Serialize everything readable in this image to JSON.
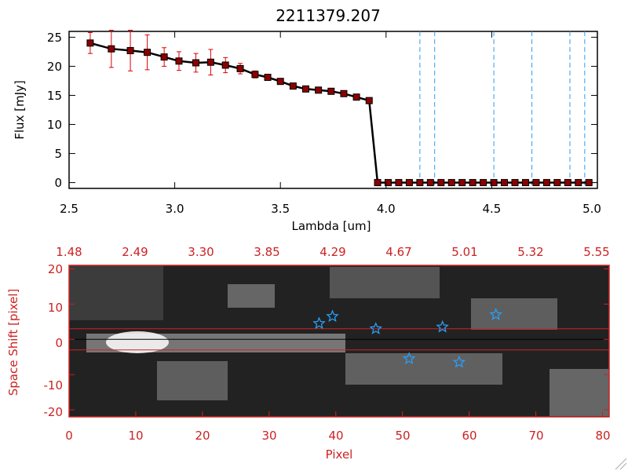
{
  "chart_data": [
    {
      "type": "line",
      "title": "2211379.207",
      "xlabel": "Lambda [um]",
      "ylabel": "Flux [mJy]",
      "xlim": [
        2.5,
        5.0
      ],
      "ylim": [
        -1,
        26
      ],
      "x_ticks": [
        "2.5",
        "3.0",
        "3.5",
        "4.0",
        "4.5",
        "5.0"
      ],
      "y_ticks": [
        "0",
        "5",
        "10",
        "15",
        "20",
        "25"
      ],
      "series": [
        {
          "x": [
            2.6,
            2.7,
            2.79,
            2.87,
            2.95,
            3.02,
            3.1,
            3.17,
            3.24,
            3.31,
            3.38,
            3.44,
            3.5,
            3.56,
            3.62,
            3.68,
            3.74,
            3.8,
            3.86,
            3.92,
            3.96,
            4.01,
            4.06,
            4.11,
            4.16,
            4.21,
            4.26,
            4.31,
            4.36,
            4.41,
            4.46,
            4.51,
            4.56,
            4.61,
            4.66,
            4.71,
            4.76,
            4.81,
            4.86,
            4.91,
            4.96
          ],
          "y": [
            24.0,
            23.0,
            22.7,
            22.4,
            21.6,
            20.9,
            20.6,
            20.7,
            20.2,
            19.6,
            18.6,
            18.1,
            17.4,
            16.6,
            16.1,
            15.9,
            15.7,
            15.3,
            14.7,
            14.1,
            0,
            0,
            0,
            0,
            0,
            0,
            0,
            0,
            0,
            0,
            0,
            0,
            0,
            0,
            0,
            0,
            0,
            0,
            0,
            0,
            0
          ],
          "yerr": [
            1.8,
            3.2,
            3.5,
            3.0,
            1.6,
            1.6,
            1.6,
            2.2,
            1.3,
            0.9,
            0.6,
            0.5,
            0.4,
            0.3,
            0.3,
            0.3,
            0.3,
            0.3,
            0.3,
            0.3,
            0,
            0,
            0,
            0,
            0,
            0,
            0,
            0,
            0,
            0,
            0,
            0,
            0,
            0,
            0,
            0,
            0,
            0,
            0,
            0,
            0
          ]
        }
      ],
      "vlines": [
        4.16,
        4.23,
        4.51,
        4.69,
        4.87,
        4.94
      ],
      "colors": {
        "line": "#000000",
        "marker": "#8b0000",
        "errorbar": "#dd0000",
        "vline": "#2a9df4"
      }
    },
    {
      "type": "heatmap",
      "xlabel": "Pixel",
      "ylabel": "Space Shift [pixel]",
      "xlim": [
        0,
        81
      ],
      "ylim": [
        -22,
        21
      ],
      "x_ticks": [
        "0",
        "10",
        "20",
        "30",
        "40",
        "50",
        "60",
        "70",
        "80"
      ],
      "y_ticks": [
        "-20",
        "-10",
        "0",
        "10",
        "20"
      ],
      "top_ticks": [
        "1.48",
        "2.49",
        "3.30",
        "3.85",
        "4.29",
        "4.67",
        "5.01",
        "5.32",
        "5.55"
      ],
      "hlines": [
        3,
        -3
      ],
      "stars": [
        {
          "x": 37.5,
          "y": 4.5
        },
        {
          "x": 39.5,
          "y": 6.5
        },
        {
          "x": 46,
          "y": 3
        },
        {
          "x": 51,
          "y": -5.5
        },
        {
          "x": 56,
          "y": 3.5
        },
        {
          "x": 58.5,
          "y": -6.5
        },
        {
          "x": 64,
          "y": 7
        }
      ],
      "colors": {
        "axis": "#cc2222",
        "star": "#2a9df4"
      }
    }
  ]
}
